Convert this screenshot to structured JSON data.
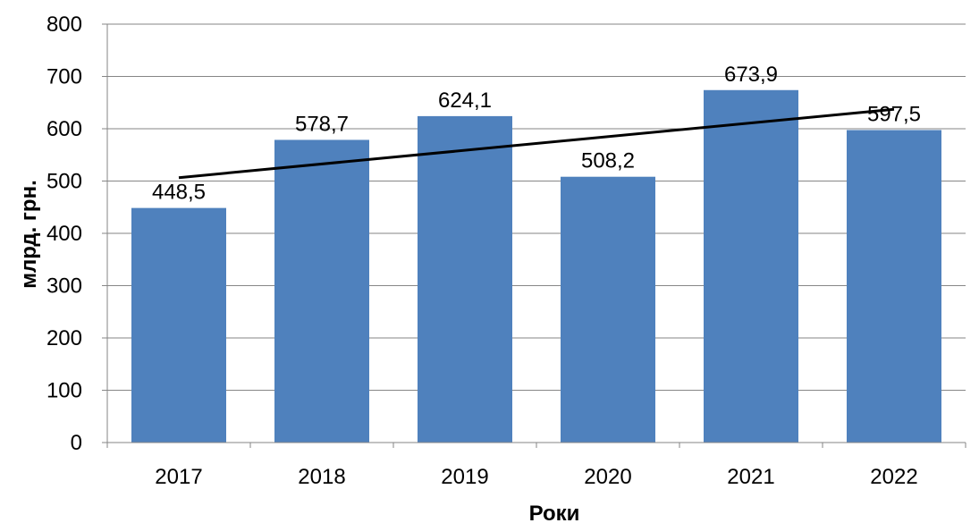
{
  "chart_data": {
    "type": "bar",
    "categories": [
      "2017",
      "2018",
      "2019",
      "2020",
      "2021",
      "2022"
    ],
    "values": [
      448.5,
      578.7,
      624.1,
      508.2,
      673.9,
      597.5
    ],
    "data_labels": [
      "448,5",
      "578,7",
      "624,1",
      "508,2",
      "673,9",
      "597,5"
    ],
    "title": "",
    "xlabel": "Роки",
    "ylabel": "млрд. грн.",
    "ylim": [
      0,
      800
    ],
    "yticks": [
      0,
      100,
      200,
      300,
      400,
      500,
      600,
      700,
      800
    ],
    "grid": true,
    "legend": "none",
    "trendline": {
      "type": "linear",
      "color": "#000000"
    },
    "colors": {
      "bar": "#4f81bd",
      "grid": "#868686",
      "axis": "#868686",
      "trend": "#000000"
    }
  }
}
